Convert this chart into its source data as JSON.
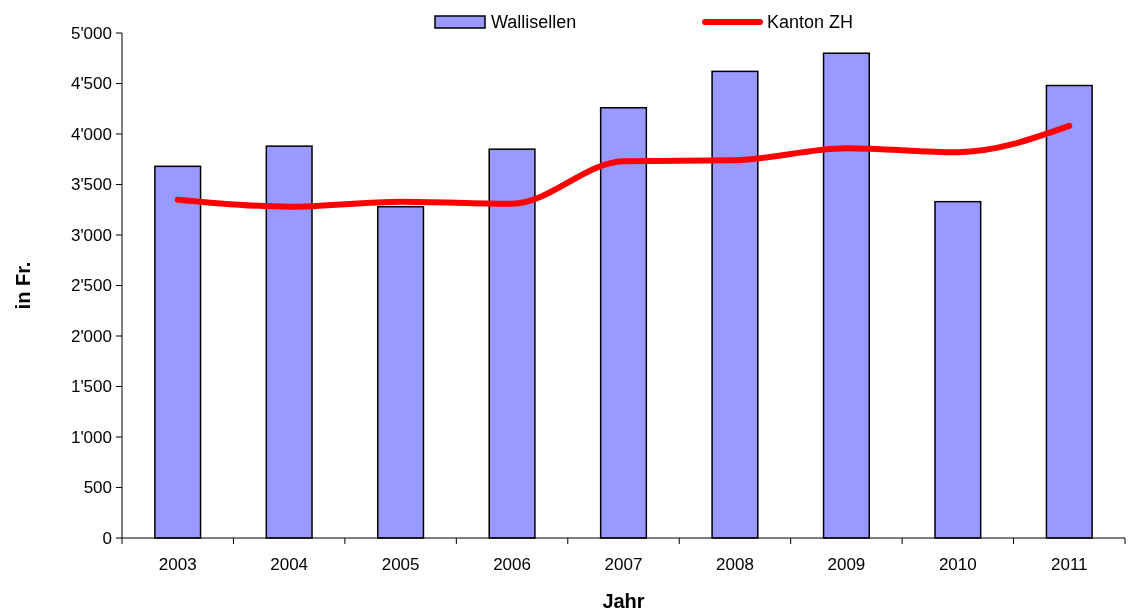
{
  "chart_data": {
    "type": "bar",
    "xlabel": "Jahr",
    "ylabel": "in Fr.",
    "categories": [
      "2003",
      "2004",
      "2005",
      "2006",
      "2007",
      "2008",
      "2009",
      "2010",
      "2011"
    ],
    "series": [
      {
        "name": "Wallisellen",
        "color": "#9999ff",
        "values": [
          3680,
          3880,
          3280,
          3850,
          4260,
          4620,
          4800,
          3330,
          4480
        ]
      },
      {
        "name": "Kanton ZH",
        "type": "line",
        "color": "#ff0000",
        "values": [
          3350,
          3280,
          3330,
          3310,
          3730,
          3740,
          3860,
          3820,
          4080
        ]
      }
    ],
    "ylim": [
      0,
      5000
    ],
    "yticks": [
      0,
      500,
      {
        "value": 1000,
        "label": "1'000"
      },
      {
        "value": 1500,
        "label": "1'500"
      },
      {
        "value": 2000,
        "label": "2'000"
      },
      {
        "value": 2500,
        "label": "2'500"
      },
      {
        "value": 3000,
        "label": "3'000"
      },
      {
        "value": 3500,
        "label": "3'500"
      },
      {
        "value": 4000,
        "label": "4'000"
      },
      {
        "value": 4500,
        "label": "4'500"
      },
      {
        "value": 5000,
        "label": "5'000"
      }
    ],
    "grid": false,
    "legend": "top"
  }
}
